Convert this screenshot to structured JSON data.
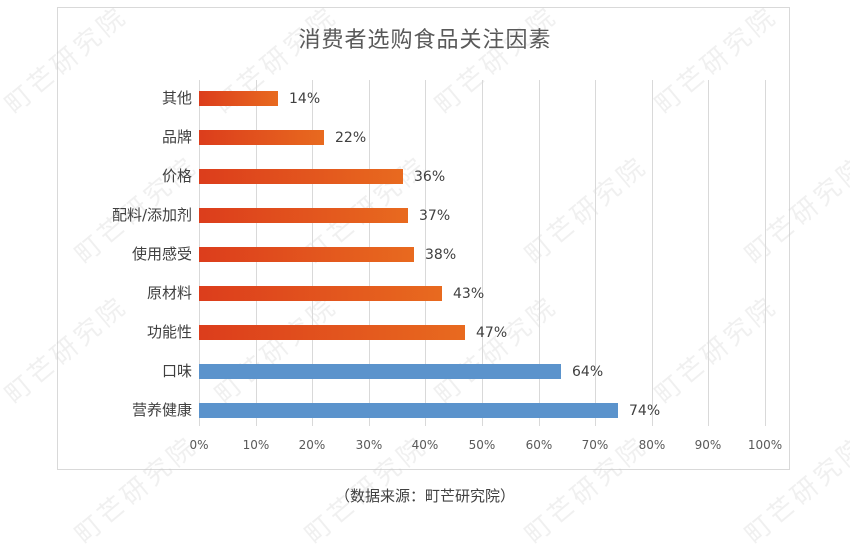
{
  "chart_data": {
    "type": "bar",
    "orientation": "horizontal",
    "title": "消费者选购食品关注因素",
    "categories": [
      "其他",
      "品牌",
      "价格",
      "配料/添加剂",
      "使用感受",
      "原材料",
      "功能性",
      "口味",
      "营养健康"
    ],
    "values": [
      14,
      22,
      36,
      37,
      38,
      43,
      47,
      64,
      74
    ],
    "value_labels": [
      "14%",
      "22%",
      "36%",
      "37%",
      "38%",
      "43%",
      "47%",
      "64%",
      "74%"
    ],
    "bar_colors": [
      "#e0501d",
      "#e0501d",
      "#e0501d",
      "#e0501d",
      "#e0501d",
      "#e0501d",
      "#e0501d",
      "#5b93cc",
      "#5b93cc"
    ],
    "xlabel": "",
    "ylabel": "",
    "xlim": [
      0,
      100
    ],
    "x_ticks": [
      "0%",
      "10%",
      "20%",
      "30%",
      "40%",
      "50%",
      "60%",
      "70%",
      "80%",
      "90%",
      "100%"
    ],
    "grid": true,
    "legend": null
  },
  "footer": {
    "source": "（数据来源：町芒研究院）"
  },
  "watermark": "町芒研究院",
  "colors": {
    "orange_start": "#dc3d1c",
    "orange_end": "#e86a1f",
    "blue": "#5b93cc",
    "grid": "#d9d9d9"
  }
}
